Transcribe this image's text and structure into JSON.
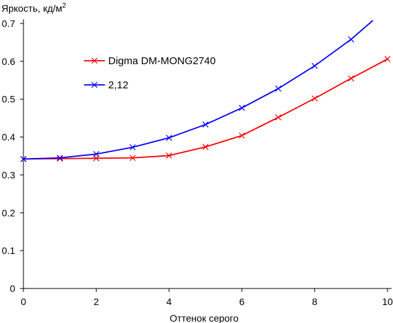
{
  "chart_data": {
    "type": "line",
    "title": "",
    "ylabel": "Яркость, кд/м",
    "ylabel_sup": "2",
    "xlabel": "Оттенок серого",
    "xlim": [
      0,
      10
    ],
    "ylim": [
      0,
      0.7
    ],
    "xticks": [
      0,
      2,
      4,
      6,
      8,
      10
    ],
    "yticks": [
      0,
      0.1,
      0.2,
      0.3,
      0.4,
      0.5,
      0.6,
      0.7
    ],
    "xtick_labels": [
      "0",
      "2",
      "4",
      "6",
      "8",
      "10"
    ],
    "ytick_labels": [
      "0",
      "0.1",
      "0.2",
      "0.3",
      "0.4",
      "0.5",
      "0.6",
      "0.7"
    ],
    "grid": false,
    "legend_position": "upper-left",
    "series": [
      {
        "name": "Digma DM-MONG2740",
        "color": "#ff0000",
        "marker": "x",
        "x": [
          0,
          1,
          2,
          3,
          4,
          5,
          6,
          7,
          8,
          9,
          10
        ],
        "values": [
          0.342,
          0.343,
          0.344,
          0.345,
          0.351,
          0.374,
          0.404,
          0.452,
          0.502,
          0.555,
          0.606
        ]
      },
      {
        "name": "2,12",
        "color": "#0000ff",
        "marker": "x",
        "x": [
          0,
          1,
          2,
          3,
          4,
          5,
          6,
          7,
          8,
          9,
          9.6
        ],
        "values": [
          0.342,
          0.345,
          0.355,
          0.373,
          0.398,
          0.433,
          0.477,
          0.528,
          0.588,
          0.658,
          0.708
        ],
        "x_end_note": ""
      }
    ]
  }
}
